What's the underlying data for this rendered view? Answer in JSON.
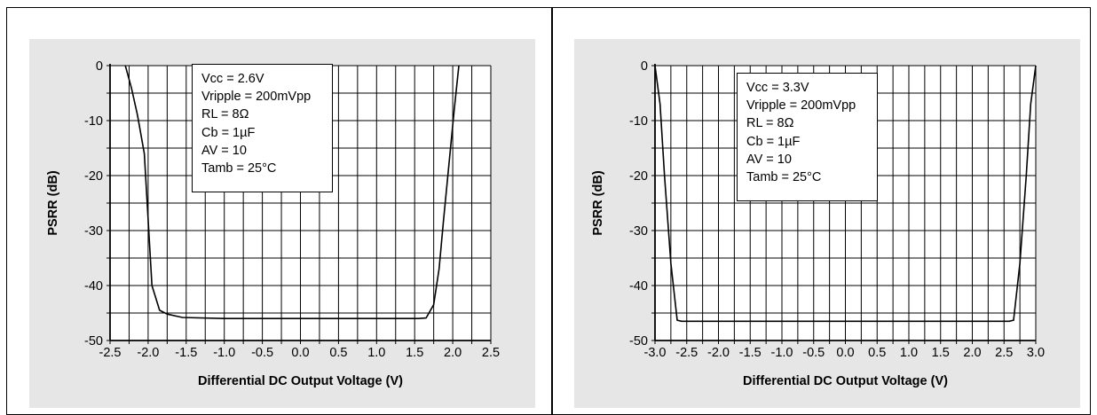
{
  "chart_data": [
    {
      "type": "line",
      "xlabel": "Differential DC Output Voltage (V)",
      "ylabel": "PSRR (dB)",
      "xlim": [
        -2.5,
        2.5
      ],
      "ylim": [
        -50,
        0
      ],
      "xticks": [
        "-2.5",
        "-2.0",
        "-1.5",
        "-1.0",
        "-0.5",
        "0.0",
        "0.5",
        "1.0",
        "1.5",
        "2.0",
        "2.5"
      ],
      "yticks": [
        "0",
        "-10",
        "-20",
        "-30",
        "-40",
        "-50"
      ],
      "grid": true,
      "legend_text": [
        "Vcc = 2.6V",
        "Vripple = 200mVpp",
        "RL = 8Ω",
        "Cb = 1µF",
        "AV = 10",
        "Tamb = 25°C"
      ],
      "series": [
        {
          "x": [
            -2.3,
            -2.22,
            -2.14,
            -2.05,
            -1.95,
            -1.85,
            -1.75,
            -1.55,
            -1.0,
            0.0,
            1.0,
            1.55,
            1.65,
            1.75,
            1.82,
            1.88,
            1.95,
            2.02,
            2.08
          ],
          "y": [
            0,
            -4,
            -9,
            -16,
            -40,
            -44.5,
            -45.2,
            -45.8,
            -46,
            -46,
            -46,
            -46,
            -45.9,
            -43.5,
            -37,
            -28,
            -18,
            -8,
            0
          ]
        }
      ]
    },
    {
      "type": "line",
      "xlabel": "Differential DC Output Voltage (V)",
      "ylabel": "PSRR (dB)",
      "xlim": [
        -3.0,
        3.0
      ],
      "ylim": [
        -50,
        0
      ],
      "xticks": [
        "-3.0",
        "-2.5",
        "-2.0",
        "-1.5",
        "-1.0",
        "-0.5",
        "0.0",
        "0.5",
        "1.0",
        "1.5",
        "2.0",
        "2.5",
        "3.0"
      ],
      "yticks": [
        "0",
        "-10",
        "-20",
        "-30",
        "-40",
        "-50"
      ],
      "grid": true,
      "legend_text": [
        "Vcc = 3.3V",
        "Vripple = 200mVpp",
        "RL = 8Ω",
        "Cb = 1µF",
        "AV = 10",
        "Tamb = 25°C"
      ],
      "series": [
        {
          "x": [
            -3.0,
            -2.92,
            -2.85,
            -2.75,
            -2.65,
            -2.58,
            -1.0,
            0.0,
            1.0,
            2.58,
            2.65,
            2.75,
            2.85,
            2.92,
            3.0
          ],
          "y": [
            0,
            -7,
            -20,
            -36,
            -46.3,
            -46.5,
            -46.5,
            -46.5,
            -46.5,
            -46.5,
            -46.3,
            -36,
            -20,
            -7,
            0
          ]
        }
      ]
    }
  ]
}
